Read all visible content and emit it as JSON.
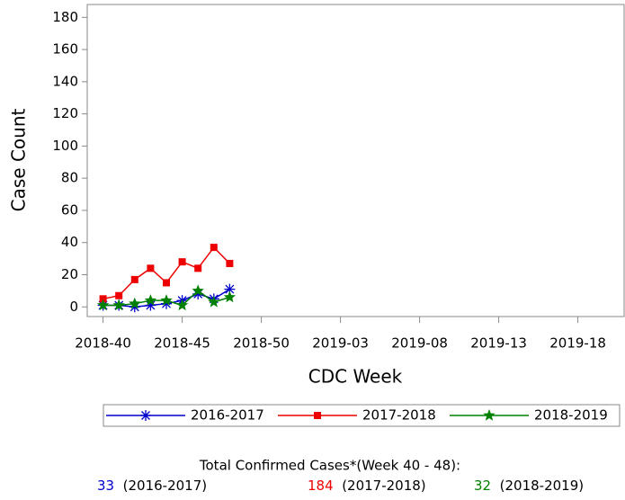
{
  "chart_data": {
    "type": "line",
    "y_label": "Case Count",
    "x_label": "CDC Week",
    "categories": [
      "2018-40",
      null,
      null,
      null,
      null,
      "2018-45",
      null,
      null,
      null,
      null,
      "2018-50",
      null,
      null,
      null,
      null,
      "2019-03",
      null,
      null,
      null,
      null,
      "2019-08",
      null,
      null,
      null,
      null,
      "2019-13",
      null,
      null,
      null,
      null,
      "2019-18",
      null,
      null
    ],
    "series": [
      {
        "name": "2016-2017",
        "color": "#0000cc",
        "marker": "asterisk",
        "values": [
          1,
          1,
          0,
          1,
          2,
          4,
          8,
          5,
          11,
          null,
          null,
          null,
          null,
          null,
          null,
          null,
          null,
          null,
          null,
          null,
          null,
          null,
          null,
          null,
          null,
          null,
          null,
          null,
          null,
          null,
          null,
          null,
          null
        ]
      },
      {
        "name": "2017-2018",
        "color": "#ee0000",
        "marker": "square",
        "values": [
          5,
          7,
          17,
          24,
          15,
          28,
          24,
          37,
          27,
          null,
          null,
          null,
          null,
          null,
          null,
          null,
          null,
          null,
          null,
          null,
          null,
          null,
          null,
          null,
          null,
          null,
          null,
          null,
          null,
          null,
          null,
          null,
          null
        ]
      },
      {
        "name": "2018-2019",
        "color": "#008000",
        "marker": "star",
        "values": [
          1,
          1,
          2,
          4,
          4,
          1,
          10,
          3,
          6,
          null,
          null,
          null,
          null,
          null,
          null,
          null,
          null,
          null,
          null,
          null,
          null,
          null,
          null,
          null,
          null,
          null,
          null,
          null,
          null,
          null,
          null,
          null,
          null
        ]
      }
    ],
    "ylim": [
      -6,
      188
    ],
    "yticks": [
      0,
      20,
      40,
      60,
      80,
      100,
      120,
      140,
      160,
      180
    ],
    "totals": {
      "title": "Total Confirmed Cases*(Week 40 - 48):",
      "items": [
        {
          "value": 33,
          "label": "(2016-2017)",
          "color": "#0000cc"
        },
        {
          "value": 184,
          "label": "(2017-2018)",
          "color": "#ee0000"
        },
        {
          "value": 32,
          "label": "(2018-2019)",
          "color": "#008000"
        }
      ]
    }
  }
}
